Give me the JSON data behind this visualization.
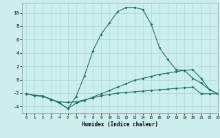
{
  "xlabel": "Humidex (Indice chaleur)",
  "bg_color": "#cceeed",
  "grid_color": "#aad8d8",
  "line_color": "#1a6b6b",
  "xlim": [
    -0.5,
    23
  ],
  "ylim": [
    -5,
    11.5
  ],
  "xticks": [
    0,
    1,
    2,
    3,
    4,
    5,
    6,
    7,
    8,
    9,
    10,
    11,
    12,
    13,
    14,
    15,
    16,
    17,
    18,
    19,
    20,
    21,
    22,
    23
  ],
  "yticks": [
    -4,
    -2,
    0,
    2,
    4,
    6,
    8,
    10
  ],
  "line1_x": [
    0,
    1,
    2,
    3,
    4,
    5,
    6,
    7,
    8,
    9,
    10,
    11,
    12,
    13,
    14,
    15,
    16,
    17,
    18,
    19,
    20,
    21,
    22,
    23
  ],
  "line1_y": [
    -2.1,
    -2.4,
    -2.4,
    -3.0,
    -3.3,
    -3.4,
    -3.3,
    -3.0,
    -2.7,
    -2.4,
    -2.2,
    -2.0,
    -1.9,
    -1.8,
    -1.7,
    -1.6,
    -1.5,
    -1.4,
    -1.3,
    -1.2,
    -1.1,
    -2.1,
    -2.1,
    -2.1
  ],
  "line2_x": [
    0,
    2,
    3,
    4,
    5,
    6,
    7,
    8,
    9,
    10,
    11,
    12,
    13,
    14,
    15,
    16,
    17,
    18,
    19,
    20,
    21,
    22,
    23
  ],
  "line2_y": [
    -2.1,
    -2.5,
    -2.9,
    -3.5,
    -4.3,
    -3.5,
    -3.1,
    -2.6,
    -2.1,
    -1.6,
    -1.1,
    -0.6,
    -0.1,
    0.2,
    0.5,
    0.8,
    1.0,
    1.2,
    1.4,
    1.5,
    0.2,
    -1.5,
    -2.1
  ],
  "line3_x": [
    0,
    2,
    3,
    4,
    5,
    6,
    7,
    8,
    9,
    10,
    11,
    12,
    13,
    14,
    15,
    16,
    17,
    18,
    19,
    20,
    21,
    22,
    23
  ],
  "line3_y": [
    -2.1,
    -2.5,
    -2.9,
    -3.5,
    -4.3,
    -2.5,
    0.6,
    4.3,
    6.8,
    8.5,
    10.2,
    10.8,
    10.8,
    10.5,
    8.3,
    4.8,
    3.0,
    1.5,
    1.4,
    0.2,
    -0.5,
    -1.5,
    -2.1
  ]
}
